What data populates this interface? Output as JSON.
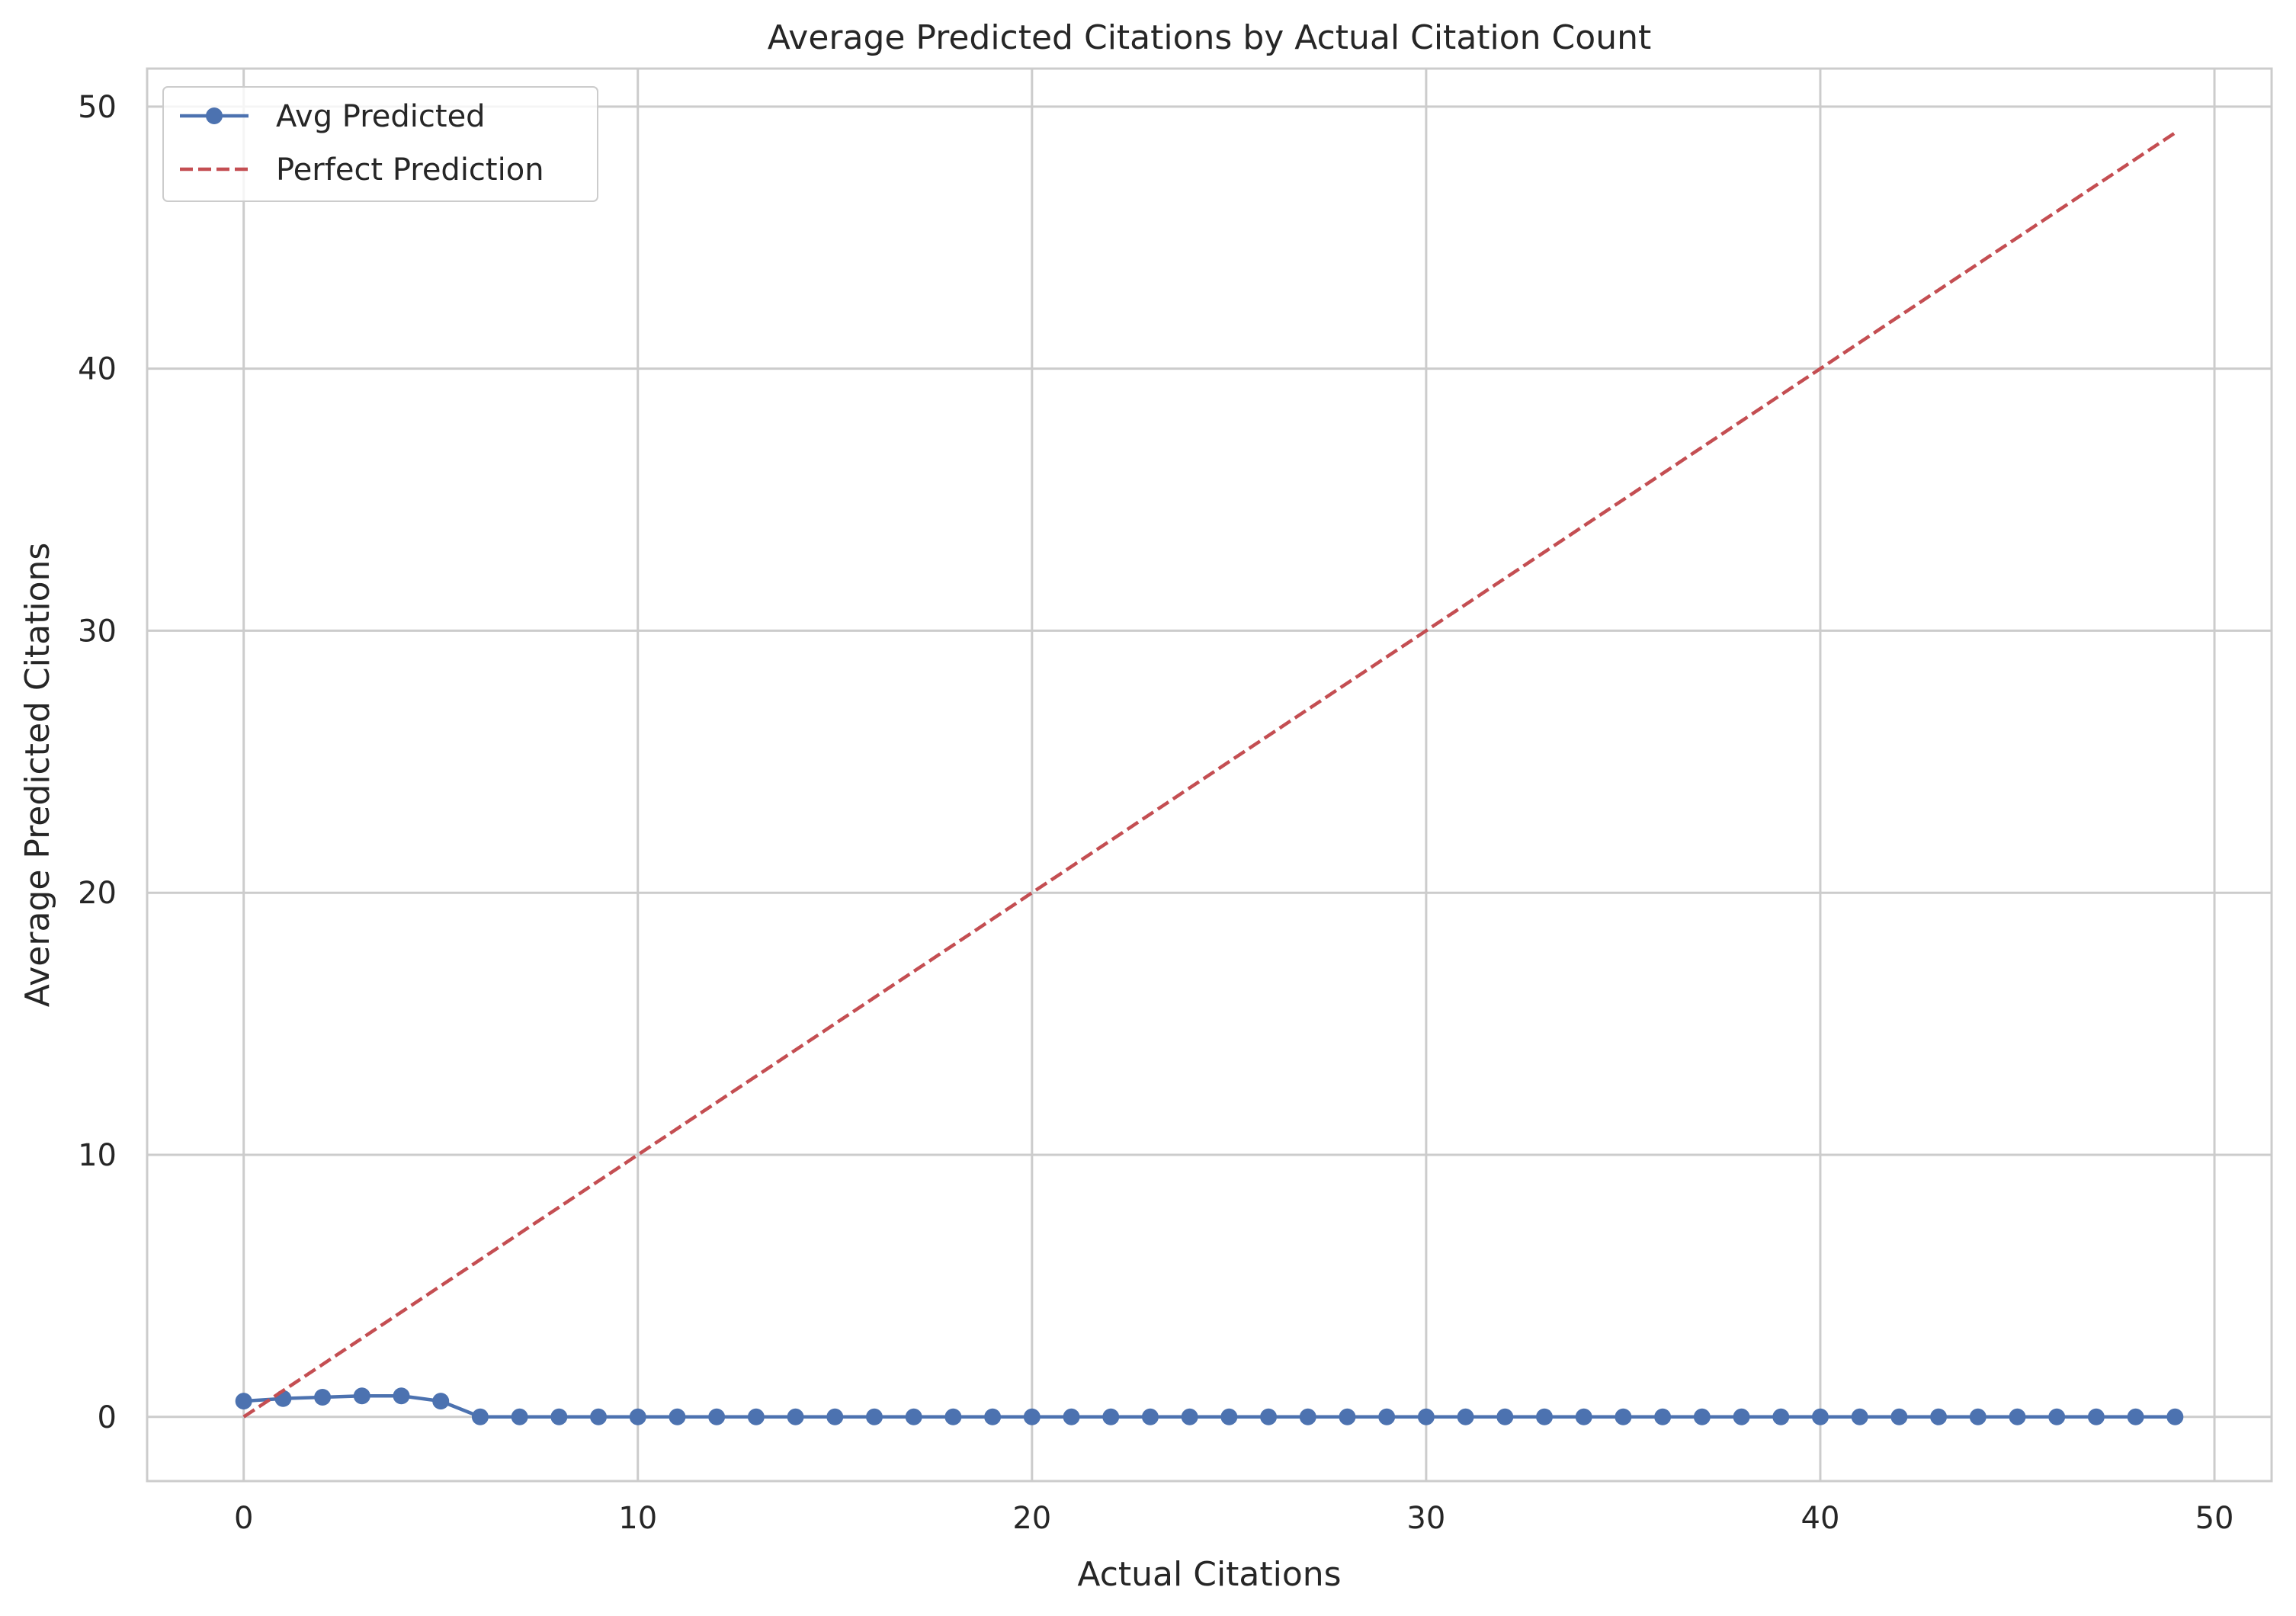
{
  "chart_data": {
    "type": "line",
    "title": "Average Predicted Citations by Actual Citation Count",
    "xlabel": "Actual Citations",
    "ylabel": "Average Predicted Citations",
    "xlim": [
      -2.45,
      51.45
    ],
    "ylim": [
      -2.45,
      51.45
    ],
    "xticks": [
      0,
      10,
      20,
      30,
      40,
      50
    ],
    "yticks": [
      0,
      10,
      20,
      30,
      40,
      50
    ],
    "grid": true,
    "legend_position": "top-left",
    "series": [
      {
        "name": "Avg Predicted",
        "style": "solid-line-with-circle-markers",
        "color": "#4c72b0",
        "x": [
          0,
          1,
          2,
          3,
          4,
          5,
          6,
          7,
          8,
          9,
          10,
          11,
          12,
          13,
          14,
          15,
          16,
          17,
          18,
          19,
          20,
          21,
          22,
          23,
          24,
          25,
          26,
          27,
          28,
          29,
          30,
          31,
          32,
          33,
          34,
          35,
          36,
          37,
          38,
          39,
          40,
          41,
          42,
          43,
          44,
          45,
          46,
          47,
          48,
          49
        ],
        "values": [
          0.6,
          0.7,
          0.75,
          0.8,
          0.8,
          0.6,
          0,
          0,
          0,
          0,
          0,
          0,
          0,
          0,
          0,
          0,
          0,
          0,
          0,
          0,
          0,
          0,
          0,
          0,
          0,
          0,
          0,
          0,
          0,
          0,
          0,
          0,
          0,
          0,
          0,
          0,
          0,
          0,
          0,
          0,
          0,
          0,
          0,
          0,
          0,
          0,
          0,
          0,
          0,
          0
        ]
      },
      {
        "name": "Perfect Prediction",
        "style": "dashed-line",
        "color": "#c44e52",
        "x": [
          0,
          49
        ],
        "values": [
          0,
          49
        ]
      }
    ]
  }
}
